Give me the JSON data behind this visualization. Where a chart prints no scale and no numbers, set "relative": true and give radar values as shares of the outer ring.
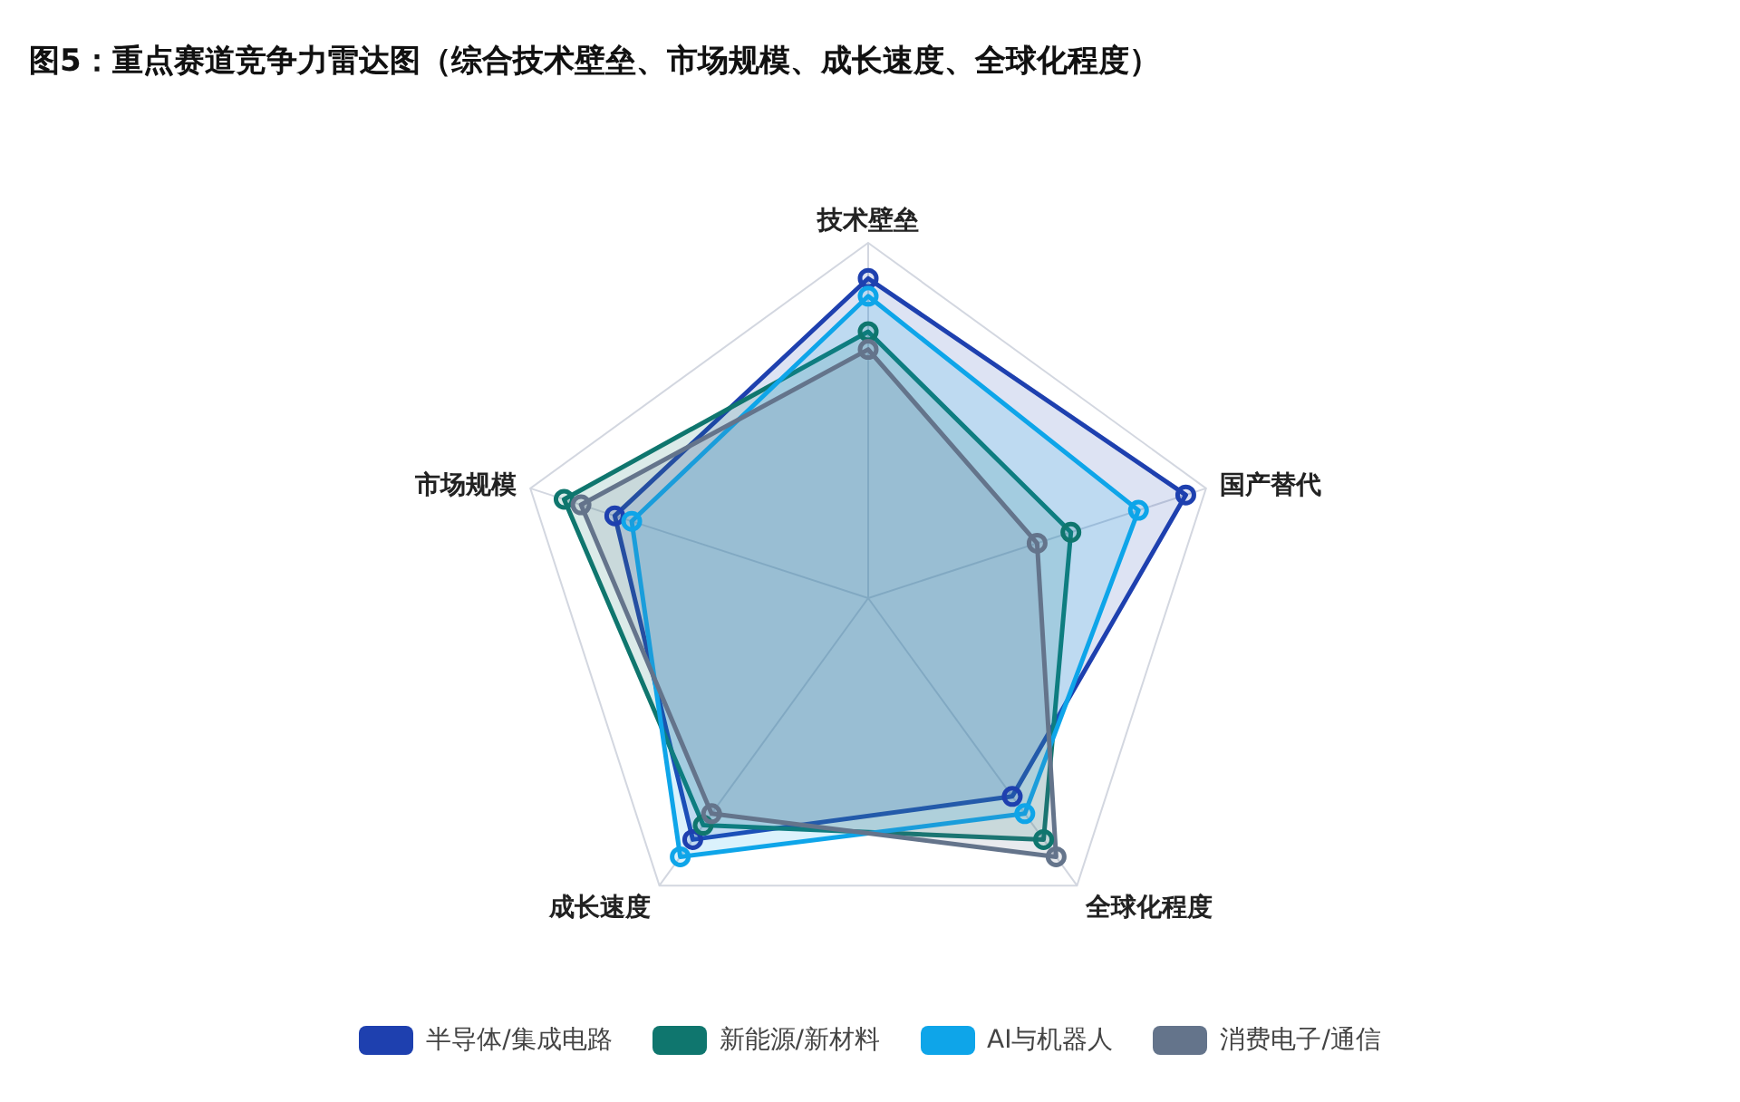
{
  "chart_data": {
    "type": "radar",
    "title": "图5：重点赛道竞争力雷达图（综合技术壁垒、市场规模、成长速度、全球化程度）",
    "categories": [
      "技术壁垒",
      "国产替代",
      "全球化程度",
      "成长速度",
      "市场规模"
    ],
    "relative": true,
    "grid": true,
    "legend": "bottom",
    "marker": "circle",
    "series": [
      {
        "name": "半导体/集成电路",
        "color": "#1e40af",
        "values": [
          0.9,
          0.94,
          0.69,
          0.84,
          0.75
        ]
      },
      {
        "name": "新能源/新材料",
        "color": "#0f766e",
        "values": [
          0.75,
          0.6,
          0.84,
          0.79,
          0.9
        ]
      },
      {
        "name": "AI与机器人",
        "color": "#0ea5e9",
        "values": [
          0.85,
          0.8,
          0.75,
          0.9,
          0.7
        ]
      },
      {
        "name": "消费电子/通信",
        "color": "#64748b",
        "values": [
          0.7,
          0.5,
          0.9,
          0.75,
          0.85
        ]
      }
    ]
  }
}
